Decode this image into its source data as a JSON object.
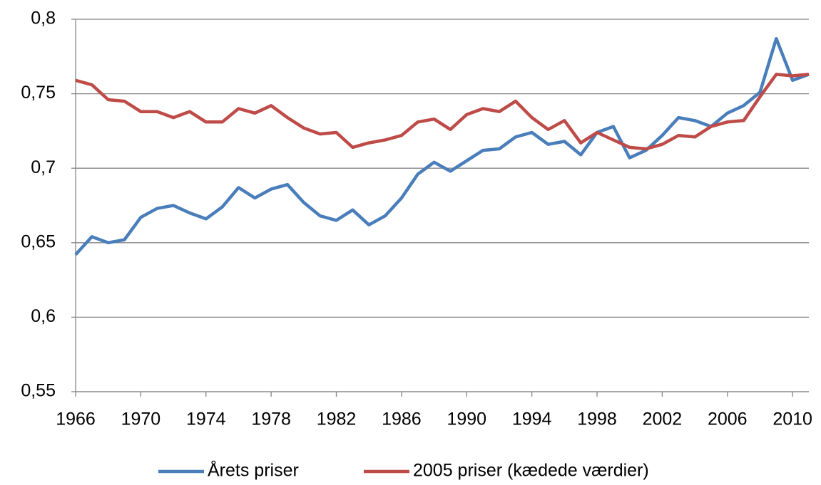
{
  "chart_data": {
    "type": "line",
    "x": [
      1966,
      1967,
      1968,
      1969,
      1970,
      1971,
      1972,
      1973,
      1974,
      1975,
      1976,
      1977,
      1978,
      1979,
      1980,
      1981,
      1982,
      1983,
      1984,
      1985,
      1986,
      1987,
      1988,
      1989,
      1990,
      1991,
      1992,
      1993,
      1994,
      1995,
      1996,
      1997,
      1998,
      1999,
      2000,
      2001,
      2002,
      2003,
      2004,
      2005,
      2006,
      2007,
      2008,
      2009,
      2010,
      2011
    ],
    "series": [
      {
        "name": "Årets priser",
        "color": "#4a7ebb",
        "values": [
          0.642,
          0.654,
          0.65,
          0.652,
          0.667,
          0.673,
          0.675,
          0.67,
          0.666,
          0.674,
          0.687,
          0.68,
          0.686,
          0.689,
          0.677,
          0.668,
          0.665,
          0.672,
          0.662,
          0.668,
          0.68,
          0.696,
          0.704,
          0.698,
          0.705,
          0.712,
          0.713,
          0.721,
          0.724,
          0.716,
          0.718,
          0.709,
          0.724,
          0.728,
          0.707,
          0.712,
          0.722,
          0.734,
          0.732,
          0.728,
          0.737,
          0.742,
          0.751,
          0.787,
          0.759,
          0.763
        ]
      },
      {
        "name": "2005 priser (kædede værdier)",
        "color": "#be4b48",
        "values": [
          0.759,
          0.756,
          0.746,
          0.745,
          0.738,
          0.738,
          0.734,
          0.738,
          0.731,
          0.731,
          0.74,
          0.737,
          0.742,
          0.734,
          0.727,
          0.723,
          0.724,
          0.714,
          0.717,
          0.719,
          0.722,
          0.731,
          0.733,
          0.726,
          0.736,
          0.74,
          0.738,
          0.745,
          0.734,
          0.726,
          0.732,
          0.717,
          0.724,
          0.719,
          0.714,
          0.713,
          0.716,
          0.722,
          0.721,
          0.728,
          0.731,
          0.732,
          0.748,
          0.763,
          0.762,
          0.763
        ]
      }
    ],
    "xlim": [
      1966,
      2011
    ],
    "xticks": [
      1966,
      1970,
      1974,
      1978,
      1982,
      1986,
      1990,
      1994,
      1998,
      2002,
      2006,
      2010
    ],
    "ylim": [
      0.55,
      0.8
    ],
    "yticks": [
      {
        "value": 0.55,
        "label": "0,55"
      },
      {
        "value": 0.6,
        "label": "0,6"
      },
      {
        "value": 0.65,
        "label": "0,65"
      },
      {
        "value": 0.7,
        "label": "0,7"
      },
      {
        "value": 0.75,
        "label": "0,75"
      },
      {
        "value": 0.8,
        "label": "0,8"
      }
    ],
    "grid": true,
    "legend": "bottom"
  }
}
